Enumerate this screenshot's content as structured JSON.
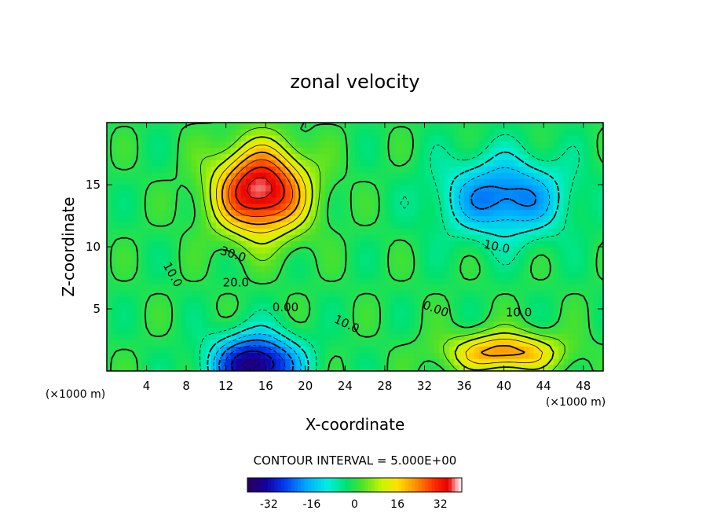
{
  "chart_data": {
    "type": "heatmap",
    "title": "zonal velocity",
    "xlabel": "X-coordinate",
    "ylabel": "Z-coordinate",
    "x_unit_left": "(×1000 m)",
    "x_unit_right": "(×1000 m)",
    "xlim": [
      0,
      50
    ],
    "ylim": [
      0,
      20
    ],
    "x_ticks": [
      4,
      8,
      12,
      16,
      20,
      24,
      28,
      32,
      36,
      40,
      44,
      48
    ],
    "y_ticks": [
      5,
      10,
      15
    ],
    "contour_interval_text": "CONTOUR INTERVAL = 5.000E+00",
    "contour_interval": 5.0,
    "colorbar": {
      "min": -40,
      "max": 40,
      "ticks": [
        -32,
        -16,
        0,
        16,
        32
      ]
    },
    "contour_labels": [
      {
        "text": "30.0",
        "x": 12.6,
        "z": 9.1,
        "angle": 18
      },
      {
        "text": "20.0",
        "x": 13.0,
        "z": 6.8,
        "angle": 0
      },
      {
        "text": "10.0",
        "x": 6.3,
        "z": 7.6,
        "angle": 60
      },
      {
        "text": "0.00",
        "x": 18.0,
        "z": 4.8,
        "angle": 0
      },
      {
        "text": "10.0",
        "x": 24.0,
        "z": 3.5,
        "angle": 25
      },
      {
        "text": "0.00",
        "x": 33.0,
        "z": 4.7,
        "angle": 20
      },
      {
        "text": "10.0",
        "x": 41.5,
        "z": 4.4,
        "angle": 0
      },
      {
        "text": "10.0",
        "x": 39.2,
        "z": 9.7,
        "angle": 12
      }
    ],
    "features": [
      {
        "name": "upper-jet-max",
        "x": 15.5,
        "z": 14.5,
        "value": 40,
        "sx": 4.5,
        "sz": 3.5
      },
      {
        "name": "lower-jet-min",
        "x": 15.0,
        "z": 0.5,
        "value": -37,
        "sx": 4.2,
        "sz": 2.4
      },
      {
        "name": "upper-right-min",
        "x": 40.0,
        "z": 14.0,
        "value": -22,
        "sx": 6.0,
        "sz": 3.2
      },
      {
        "name": "lower-right-max",
        "x": 40.0,
        "z": 1.5,
        "value": 24,
        "sx": 5.5,
        "sz": 1.6
      }
    ]
  }
}
